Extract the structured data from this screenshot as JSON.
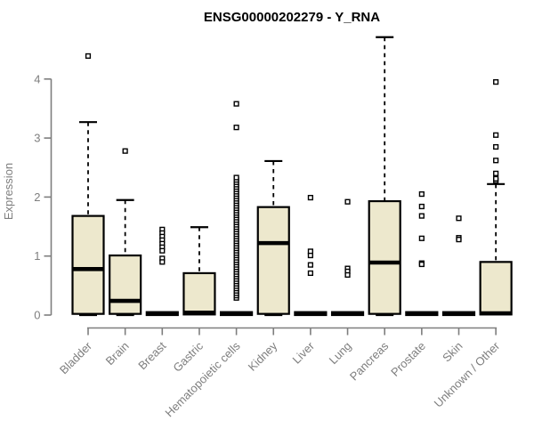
{
  "chart_data": {
    "type": "boxplot",
    "title": "ENSG00000202279 - Y_RNA",
    "ylabel": "Expression",
    "xlabel": "",
    "ylim": [
      0,
      4.8
    ],
    "yticks": [
      0,
      1,
      2,
      3,
      4
    ],
    "grid": false,
    "legend": "none",
    "colors": {
      "box_fill": "#ede8cd",
      "box_stroke": "#000000",
      "axis": "#7e7e7e",
      "tick_text": "#7e7e7e",
      "title_text": "#000000"
    },
    "categories": [
      "Bladder",
      "Brain",
      "Breast",
      "Gastric",
      "Hematopoietic cells",
      "Kidney",
      "Liver",
      "Lung",
      "Pancreas",
      "Prostate",
      "Skin",
      "Unknown / Other"
    ],
    "series": [
      {
        "name": "Bladder",
        "whisker_low": 0,
        "q1": 0.02,
        "median": 0.78,
        "q3": 1.68,
        "whisker_high": 3.27,
        "outliers": [
          4.39
        ]
      },
      {
        "name": "Brain",
        "whisker_low": 0,
        "q1": 0.02,
        "median": 0.24,
        "q3": 1.01,
        "whisker_high": 1.95,
        "outliers": [
          2.78
        ]
      },
      {
        "name": "Breast",
        "whisker_low": 0,
        "q1": 0.0,
        "median": 0.02,
        "q3": 0.05,
        "whisker_high": 0.05,
        "outliers": [
          1.45,
          1.39,
          1.33,
          1.27,
          1.21,
          1.15,
          1.09,
          0.96,
          0.9
        ]
      },
      {
        "name": "Gastric",
        "whisker_low": 0,
        "q1": 0.01,
        "median": 0.04,
        "q3": 0.71,
        "whisker_high": 1.49,
        "outliers": []
      },
      {
        "name": "Hematopoietic cells",
        "whisker_low": 0,
        "q1": 0.0,
        "median": 0.02,
        "q3": 0.05,
        "whisker_high": 0.05,
        "outliers": [
          0.29,
          0.33,
          0.37,
          0.41,
          0.45,
          0.49,
          0.53,
          0.57,
          0.61,
          0.65,
          0.69,
          0.73,
          0.77,
          0.81,
          0.85,
          0.89,
          0.93,
          0.97,
          1.01,
          1.05,
          1.09,
          1.13,
          1.17,
          1.21,
          1.25,
          1.29,
          1.33,
          1.37,
          1.41,
          1.45,
          1.49,
          1.53,
          1.57,
          1.61,
          1.65,
          1.69,
          1.73,
          1.77,
          1.81,
          1.85,
          1.89,
          1.93,
          1.97,
          2.01,
          2.05,
          2.09,
          2.13,
          2.17,
          2.21,
          2.25,
          2.29,
          2.33,
          3.18,
          3.58
        ]
      },
      {
        "name": "Kidney",
        "whisker_low": 0,
        "q1": 0.02,
        "median": 1.22,
        "q3": 1.83,
        "whisker_high": 2.61,
        "outliers": []
      },
      {
        "name": "Liver",
        "whisker_low": 0,
        "q1": 0.0,
        "median": 0.02,
        "q3": 0.05,
        "whisker_high": 0.05,
        "outliers": [
          1.99,
          1.08,
          1.01,
          0.85,
          0.71
        ]
      },
      {
        "name": "Lung",
        "whisker_low": 0,
        "q1": 0.0,
        "median": 0.02,
        "q3": 0.05,
        "whisker_high": 0.05,
        "outliers": [
          1.92,
          0.79,
          0.74,
          0.68
        ]
      },
      {
        "name": "Pancreas",
        "whisker_low": 0,
        "q1": 0.02,
        "median": 0.89,
        "q3": 1.93,
        "whisker_high": 4.71,
        "outliers": []
      },
      {
        "name": "Prostate",
        "whisker_low": 0,
        "q1": 0.0,
        "median": 0.02,
        "q3": 0.05,
        "whisker_high": 0.05,
        "outliers": [
          2.05,
          1.84,
          1.68,
          1.3,
          0.88,
          0.86
        ]
      },
      {
        "name": "Skin",
        "whisker_low": 0,
        "q1": 0.0,
        "median": 0.02,
        "q3": 0.05,
        "whisker_high": 0.05,
        "outliers": [
          1.64,
          1.31,
          1.28
        ]
      },
      {
        "name": "Unknown / Other",
        "whisker_low": 0,
        "q1": 0.01,
        "median": 0.03,
        "q3": 0.9,
        "whisker_high": 2.22,
        "outliers": [
          2.28,
          2.31,
          2.4,
          2.62,
          2.85,
          3.05,
          3.95
        ]
      }
    ]
  }
}
